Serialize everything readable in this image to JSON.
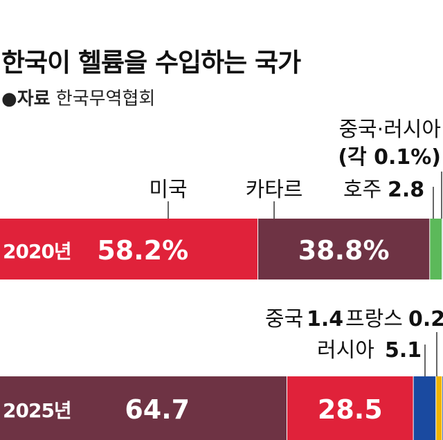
{
  "title": "한국이 헬륨을 수입하는 국가",
  "source": {
    "marker": "●",
    "label": "자료",
    "name": "한국무역협회"
  },
  "chart_data": {
    "type": "bar",
    "orientation": "horizontal",
    "stacked": true,
    "unit": "%",
    "title": "한국이 헬륨을 수입하는 국가",
    "rows": [
      {
        "year_label": "2020년",
        "segments": [
          {
            "name": "미국",
            "value": 58.2,
            "label": "58.2%",
            "color": "#e0223a"
          },
          {
            "name": "카타르",
            "value": 38.8,
            "label": "38.8%",
            "color": "#6e3344"
          },
          {
            "name": "호주",
            "value": 2.8,
            "label": "2.8",
            "color": "#5cb95a"
          },
          {
            "name": "중국",
            "value": 0.1,
            "color": "#1a4aa0"
          },
          {
            "name": "러시아",
            "value": 0.1,
            "color": "#1a4aa0"
          }
        ],
        "callouts": [
          {
            "text": "미국",
            "segment": 0
          },
          {
            "text": "카타르",
            "segment": 1
          },
          {
            "text": "호주",
            "value_text": "2.8",
            "segment": 2
          },
          {
            "text": "중국·러시아",
            "sub": "(각 0.1%)",
            "segment": 3
          }
        ]
      },
      {
        "year_label": "2025년",
        "segments": [
          {
            "name": "카타르",
            "value": 64.7,
            "label": "64.7",
            "color": "#6e3344"
          },
          {
            "name": "미국",
            "value": 28.5,
            "label": "28.5",
            "color": "#e0223a"
          },
          {
            "name": "러시아",
            "value": 5.1,
            "label": "5.1",
            "color": "#1a4aa0"
          },
          {
            "name": "중국",
            "value": 1.4,
            "label": "1.4",
            "color": "#f0b400"
          },
          {
            "name": "프랑스",
            "value": 0.2,
            "label": "0.2",
            "color": "#1a4aa0"
          }
        ],
        "callouts": [
          {
            "text": "러시아",
            "value_text": "5.1",
            "segment": 2
          },
          {
            "text": "중국",
            "value_text": "1.4",
            "segment": 3
          },
          {
            "text": "프랑스",
            "value_text": "0.2",
            "segment": 4
          }
        ]
      }
    ]
  }
}
